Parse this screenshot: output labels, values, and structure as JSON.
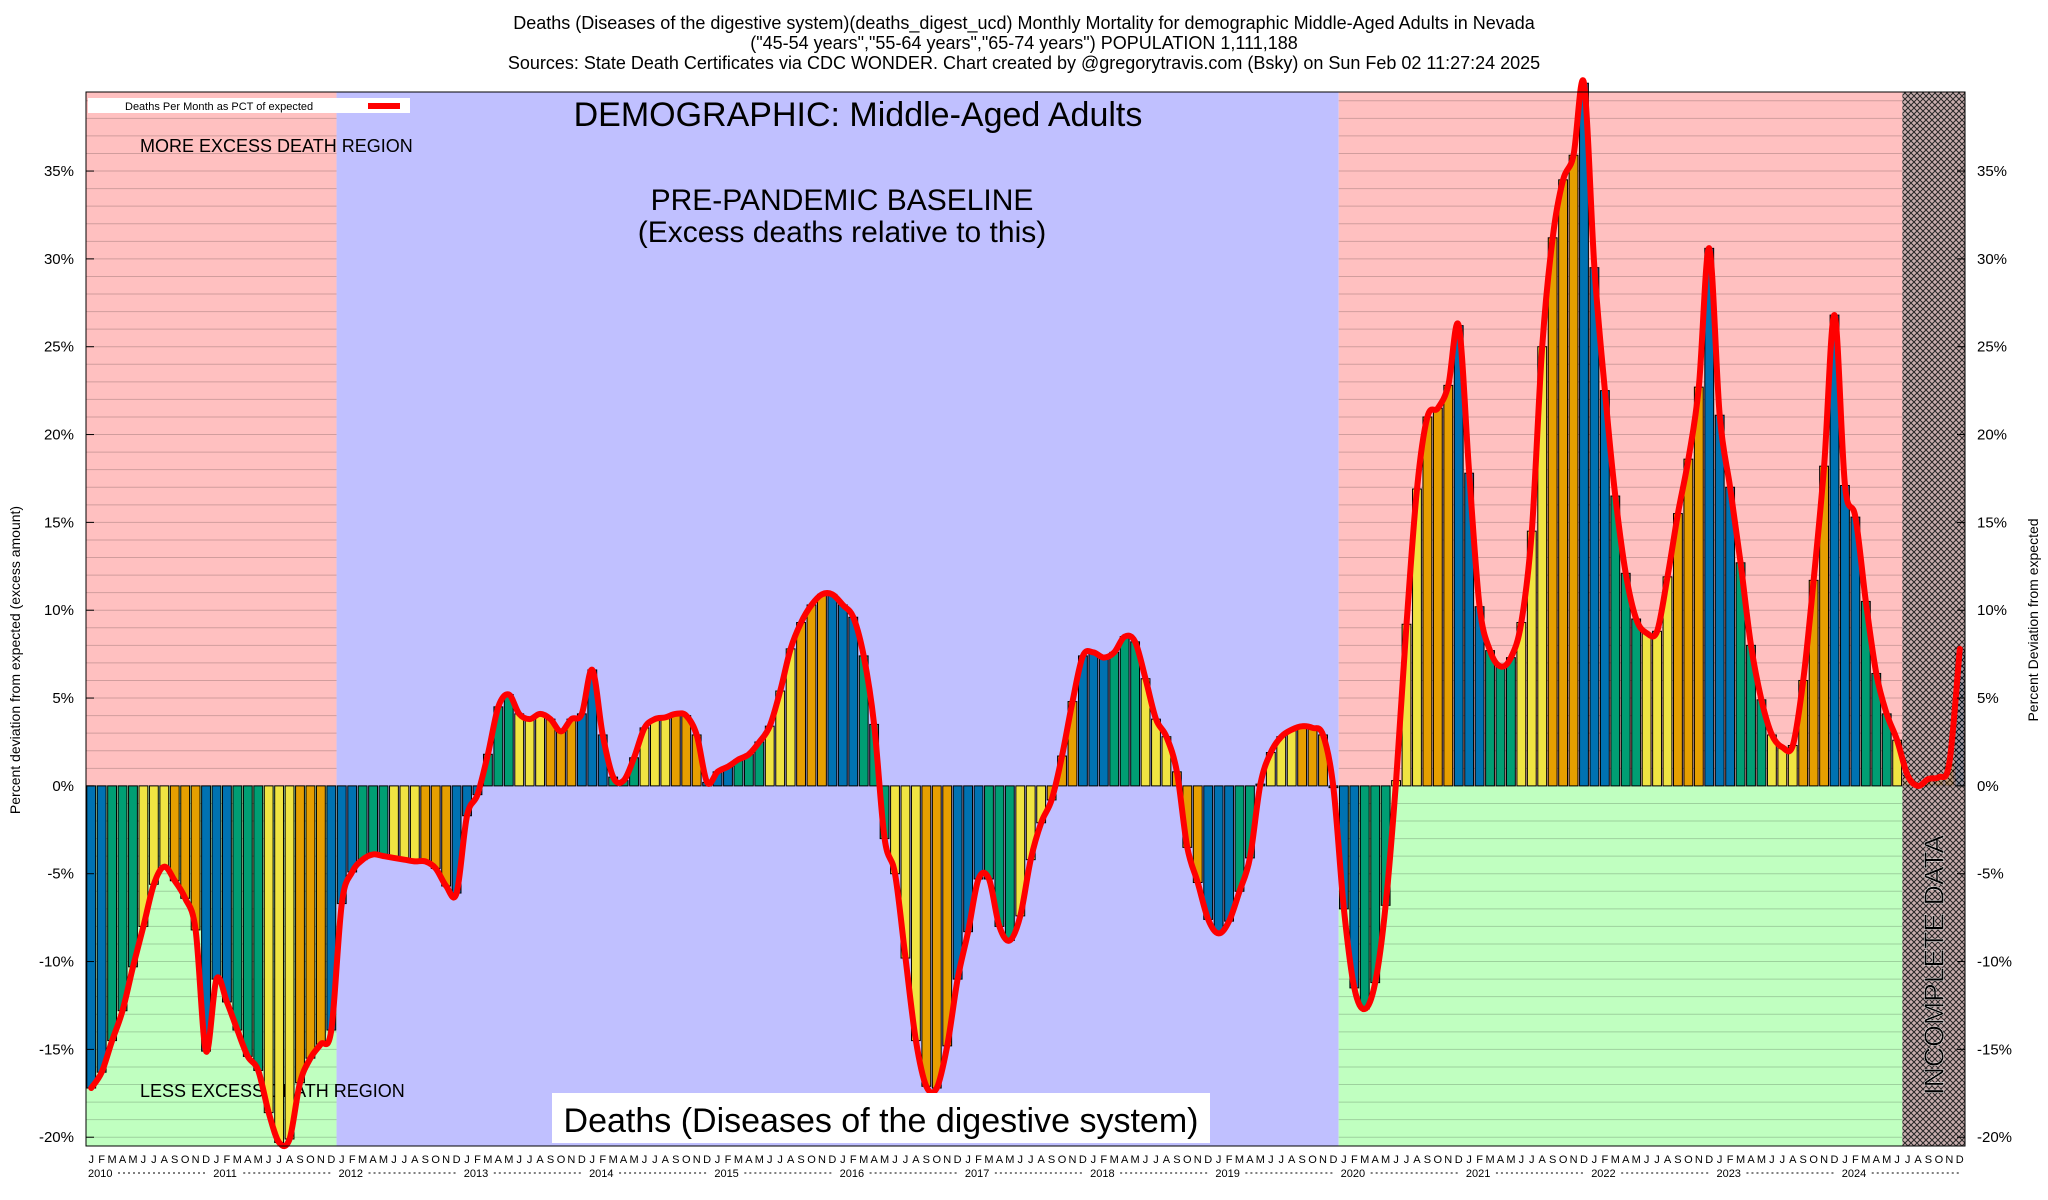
{
  "header": {
    "line1": "Deaths (Diseases of the digestive system)(deaths_digest_ucd) Monthly Mortality for demographic Middle-Aged Adults in Nevada",
    "line2": "(\"45-54 years\",\"55-64 years\",\"65-74 years\") POPULATION 1,111,188",
    "line3": "Sources: State Death Certificates via CDC WONDER.               Chart created by @gregorytravis.com (Bsky) on Sun Feb 02 11:27:24 2025"
  },
  "chart_data": {
    "type": "bar",
    "title": "DEMOGRAPHIC: Middle-Aged Adults",
    "bottom_title": "Deaths (Diseases of the digestive system)",
    "baseline_text_1": "PRE-PANDEMIC BASELINE",
    "baseline_text_2": "(Excess deaths relative to this)",
    "more_region_text": "MORE EXCESS DEATH REGION",
    "less_region_text": "LESS EXCESS DEATH REGION",
    "incomplete_text": "INCOMPLETE DATA",
    "legend_label": "Deaths Per Month as PCT of expected",
    "ylabel_left": "Percent deviation from expected (excess amount)",
    "ylabel_right": "Percent Deviation from expected",
    "ylim": [
      -20.5,
      39.5
    ],
    "y_ticks": [
      -20,
      -15,
      -10,
      -5,
      0,
      5,
      10,
      15,
      20,
      25,
      30,
      35
    ],
    "y_tick_labels": [
      "-20%",
      "-15%",
      "-10%",
      "-5%",
      "0%",
      "5%",
      "10%",
      "15%",
      "20%",
      "25%",
      "30%",
      "35%"
    ],
    "month_letters": [
      "J",
      "F",
      "M",
      "A",
      "M",
      "J",
      "J",
      "A",
      "S",
      "O",
      "N",
      "D"
    ],
    "years": [
      "2010",
      "2011",
      "2012",
      "2013",
      "2014",
      "2015",
      "2016",
      "2017",
      "2018",
      "2019",
      "2020",
      "2021",
      "2022",
      "2023",
      "2024"
    ],
    "baseline_years": [
      "2012",
      "2019"
    ],
    "incomplete_from": "2024-07",
    "legend_position": "top-left",
    "grid": true,
    "colors": {
      "more_region": "#ffc0c0",
      "less_region": "#c0ffc0",
      "baseline_region": "#c0c0ff",
      "line": "#ff0000",
      "bar_blue": "#0072b2",
      "bar_green": "#009e73",
      "bar_yellow": "#f0e442",
      "bar_orange": "#e69f00",
      "incomplete": "#c0a0a0"
    },
    "values": [
      -17.2,
      -16.3,
      -14.5,
      -12.8,
      -10.3,
      -8.0,
      -5.6,
      -4.6,
      -5.4,
      -6.4,
      -8.2,
      -15.1,
      -11.0,
      -12.3,
      -13.9,
      -15.4,
      -16.2,
      -18.6,
      -20.3,
      -20.1,
      -16.9,
      -15.5,
      -14.7,
      -13.9,
      -6.7,
      -4.9,
      -4.2,
      -3.9,
      -4.0,
      -4.1,
      -4.2,
      -4.3,
      -4.3,
      -4.7,
      -5.7,
      -6.1,
      -1.7,
      -0.5,
      1.8,
      4.5,
      5.2,
      4.1,
      3.8,
      4.1,
      3.8,
      3.1,
      3.8,
      4.1,
      6.6,
      2.9,
      0.5,
      0.3,
      1.6,
      3.3,
      3.8,
      3.9,
      4.1,
      4.0,
      2.9,
      0.2,
      0.8,
      1.1,
      1.5,
      1.8,
      2.5,
      3.4,
      5.4,
      7.8,
      9.3,
      10.3,
      10.9,
      10.9,
      10.3,
      9.6,
      7.4,
      3.5,
      -3.0,
      -5.0,
      -9.8,
      -14.5,
      -17.1,
      -17.2,
      -14.8,
      -11.0,
      -8.3,
      -5.3,
      -5.3,
      -8.0,
      -8.8,
      -7.4,
      -4.2,
      -2.1,
      -0.8,
      1.7,
      4.8,
      7.4,
      7.6,
      7.3,
      7.6,
      8.5,
      8.2,
      6.1,
      3.8,
      2.8,
      0.8,
      -3.5,
      -5.5,
      -7.6,
      -8.4,
      -7.7,
      -6.0,
      -4.1,
      0.1,
      1.9,
      2.8,
      3.2,
      3.4,
      3.3,
      2.9,
      -0.1,
      -7.0,
      -11.5,
      -12.7,
      -11.2,
      -6.8,
      0.3,
      9.2,
      16.9,
      21.0,
      21.5,
      22.8,
      26.2,
      17.8,
      10.2,
      7.7,
      6.8,
      7.3,
      9.3,
      14.5,
      25.0,
      31.2,
      34.5,
      35.9,
      40.0,
      29.5,
      22.5,
      16.5,
      12.1,
      9.5,
      8.7,
      8.8,
      11.9,
      15.5,
      18.6,
      22.7,
      30.6,
      21.1,
      17.0,
      12.7,
      8.0,
      4.9,
      2.9,
      2.2,
      2.3,
      6.0,
      11.7,
      18.2,
      26.8,
      17.1,
      15.3,
      10.5,
      6.4,
      4.1,
      2.6,
      0.6,
      0.0,
      0.4,
      0.5,
      1.3,
      7.8
    ]
  }
}
